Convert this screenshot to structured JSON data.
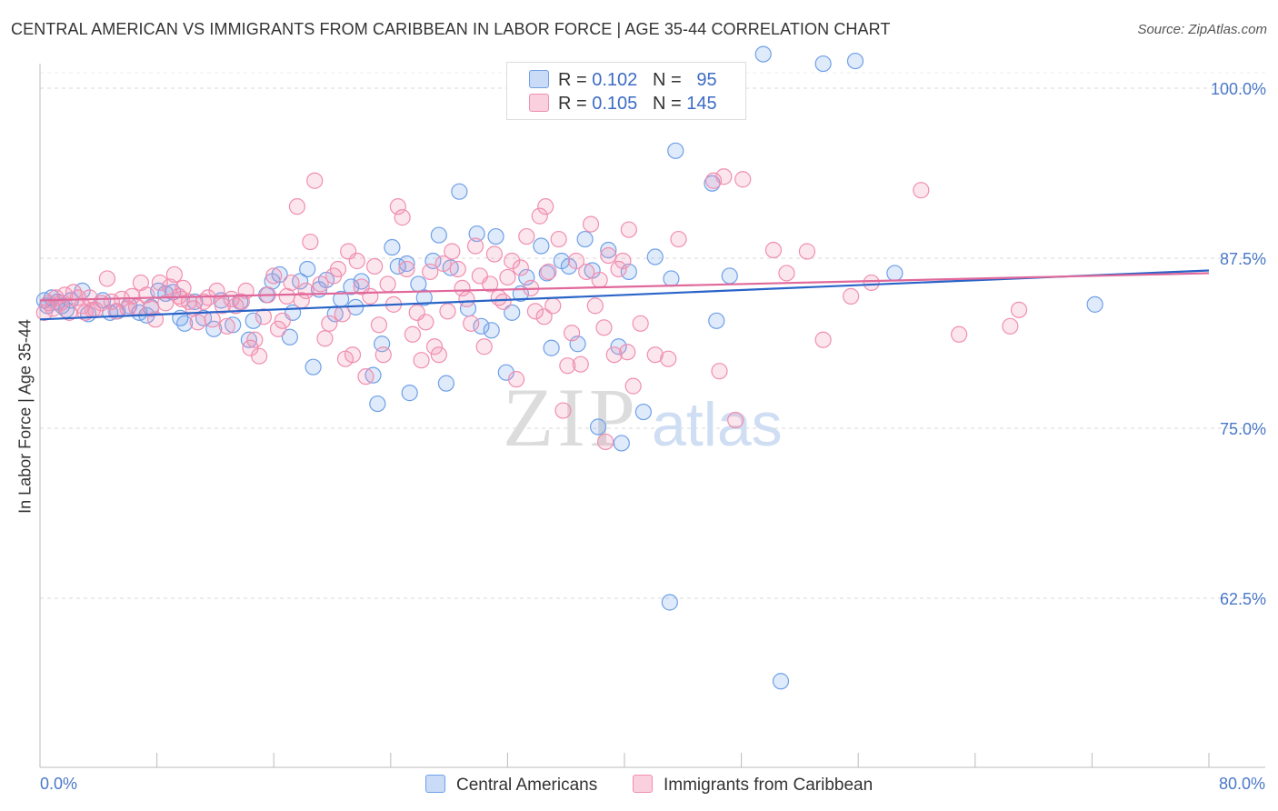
{
  "title": "CENTRAL AMERICAN VS IMMIGRANTS FROM CARIBBEAN IN LABOR FORCE | AGE 35-44 CORRELATION CHART",
  "source": "Source: ZipAtlas.com",
  "watermark": {
    "zip": "ZIP",
    "atlas": "atlas"
  },
  "legend": {
    "r_label": "R =",
    "n_label": "N =",
    "rows": [
      {
        "r": "0.102",
        "n": "95",
        "color": "#6fa0e8"
      },
      {
        "r": "0.105",
        "n": "145",
        "color": "#f08fb0"
      }
    ]
  },
  "chart_data": {
    "type": "scatter",
    "xlabel": "",
    "ylabel": "In Labor Force | Age 35-44",
    "xlim": [
      0,
      80
    ],
    "ylim": [
      50,
      100
    ],
    "x_tick_labels": [
      "0.0%",
      "80.0%"
    ],
    "y_ticks": [
      62.5,
      75.0,
      87.5,
      100.0
    ],
    "y_tick_labels": [
      "62.5%",
      "75.0%",
      "87.5%",
      "100.0%"
    ],
    "grid": "horizontal dashed",
    "series": [
      {
        "name": "Central Americans",
        "color": "#6fa0e8",
        "line_color": "#2a64c8",
        "trend": [
          [
            0,
            83.0
          ],
          [
            80,
            86.6
          ]
        ],
        "points": [
          [
            0.3,
            84.4
          ],
          [
            0.5,
            84.0
          ],
          [
            0.8,
            84.6
          ],
          [
            1.2,
            84.3
          ],
          [
            1.5,
            84.0
          ],
          [
            1.8,
            83.7
          ],
          [
            2.1,
            84.4
          ],
          [
            2.9,
            85.1
          ],
          [
            3.3,
            83.4
          ],
          [
            4.3,
            84.4
          ],
          [
            4.8,
            83.5
          ],
          [
            5.3,
            83.6
          ],
          [
            6.1,
            84.0
          ],
          [
            6.8,
            83.5
          ],
          [
            7.3,
            83.3
          ],
          [
            7.6,
            83.9
          ],
          [
            8.1,
            85.1
          ],
          [
            8.6,
            84.9
          ],
          [
            9.1,
            85.0
          ],
          [
            9.6,
            83.1
          ],
          [
            9.9,
            82.7
          ],
          [
            10.6,
            84.3
          ],
          [
            11.2,
            83.1
          ],
          [
            11.9,
            82.3
          ],
          [
            12.4,
            84.4
          ],
          [
            13.2,
            82.6
          ],
          [
            13.7,
            84.3
          ],
          [
            14.3,
            81.5
          ],
          [
            14.6,
            82.9
          ],
          [
            15.5,
            84.8
          ],
          [
            15.9,
            85.8
          ],
          [
            16.4,
            86.3
          ],
          [
            17.1,
            81.7
          ],
          [
            17.3,
            83.5
          ],
          [
            17.8,
            85.8
          ],
          [
            18.3,
            86.7
          ],
          [
            18.7,
            79.5
          ],
          [
            19.1,
            85.2
          ],
          [
            19.6,
            85.9
          ],
          [
            20.2,
            83.4
          ],
          [
            20.6,
            84.5
          ],
          [
            21.3,
            85.4
          ],
          [
            21.6,
            83.9
          ],
          [
            22.0,
            85.8
          ],
          [
            22.8,
            78.9
          ],
          [
            23.1,
            76.8
          ],
          [
            23.4,
            81.2
          ],
          [
            24.1,
            88.3
          ],
          [
            24.5,
            86.9
          ],
          [
            25.1,
            87.1
          ],
          [
            25.3,
            77.6
          ],
          [
            25.9,
            85.6
          ],
          [
            26.3,
            84.6
          ],
          [
            26.9,
            87.3
          ],
          [
            27.3,
            89.2
          ],
          [
            27.8,
            78.3
          ],
          [
            28.1,
            86.8
          ],
          [
            28.7,
            92.4
          ],
          [
            29.3,
            83.8
          ],
          [
            29.9,
            89.3
          ],
          [
            30.2,
            82.5
          ],
          [
            30.9,
            82.2
          ],
          [
            31.2,
            89.1
          ],
          [
            31.9,
            79.1
          ],
          [
            32.3,
            83.5
          ],
          [
            32.9,
            84.9
          ],
          [
            33.3,
            86.1
          ],
          [
            34.3,
            88.4
          ],
          [
            34.7,
            86.4
          ],
          [
            35.0,
            80.9
          ],
          [
            35.7,
            87.3
          ],
          [
            36.2,
            86.9
          ],
          [
            36.8,
            81.2
          ],
          [
            37.3,
            88.9
          ],
          [
            37.8,
            86.6
          ],
          [
            38.2,
            75.1
          ],
          [
            38.9,
            88.1
          ],
          [
            39.6,
            81.0
          ],
          [
            39.8,
            73.9
          ],
          [
            40.3,
            86.5
          ],
          [
            41.3,
            76.2
          ],
          [
            42.1,
            87.6
          ],
          [
            43.2,
            86.0
          ],
          [
            43.5,
            95.4
          ],
          [
            46.0,
            93.0
          ],
          [
            46.3,
            82.9
          ],
          [
            47.2,
            86.2
          ],
          [
            49.5,
            102.5
          ],
          [
            53.6,
            101.8
          ],
          [
            55.8,
            102.0
          ],
          [
            58.5,
            86.4
          ],
          [
            72.2,
            84.1
          ],
          [
            43.1,
            62.2
          ],
          [
            50.7,
            56.4
          ]
        ]
      },
      {
        "name": "Immigrants from Caribbean",
        "color": "#f08fb0",
        "line_color": "#e0689a",
        "trend": [
          [
            0,
            84.4
          ],
          [
            80,
            86.4
          ]
        ],
        "points": [
          [
            0.3,
            83.5
          ],
          [
            0.6,
            84.2
          ],
          [
            0.9,
            83.8
          ],
          [
            1.1,
            84.6
          ],
          [
            1.4,
            84.2
          ],
          [
            1.7,
            84.8
          ],
          [
            2.0,
            83.5
          ],
          [
            2.3,
            85.0
          ],
          [
            2.6,
            84.6
          ],
          [
            2.9,
            84.0
          ],
          [
            3.1,
            83.5
          ],
          [
            3.4,
            84.6
          ],
          [
            3.8,
            83.7
          ],
          [
            4.2,
            84.2
          ],
          [
            4.6,
            86.0
          ],
          [
            4.9,
            84.3
          ],
          [
            5.2,
            83.6
          ],
          [
            5.6,
            84.5
          ],
          [
            6.0,
            83.8
          ],
          [
            6.3,
            84.7
          ],
          [
            6.6,
            83.9
          ],
          [
            6.9,
            85.7
          ],
          [
            7.3,
            84.8
          ],
          [
            7.6,
            83.8
          ],
          [
            7.9,
            83.0
          ],
          [
            8.2,
            85.7
          ],
          [
            8.6,
            84.2
          ],
          [
            8.9,
            85.4
          ],
          [
            9.2,
            86.3
          ],
          [
            9.5,
            84.7
          ],
          [
            9.8,
            85.3
          ],
          [
            10.2,
            84.3
          ],
          [
            10.5,
            83.8
          ],
          [
            10.8,
            82.8
          ],
          [
            11.2,
            84.3
          ],
          [
            11.5,
            84.6
          ],
          [
            11.8,
            83.0
          ],
          [
            12.1,
            85.1
          ],
          [
            12.5,
            84.0
          ],
          [
            12.8,
            82.5
          ],
          [
            13.1,
            84.5
          ],
          [
            13.4,
            84.0
          ],
          [
            13.8,
            84.3
          ],
          [
            14.1,
            85.1
          ],
          [
            14.4,
            80.9
          ],
          [
            14.7,
            81.5
          ],
          [
            15.0,
            80.3
          ],
          [
            15.3,
            83.2
          ],
          [
            15.6,
            84.8
          ],
          [
            16.0,
            86.2
          ],
          [
            16.3,
            82.3
          ],
          [
            16.6,
            82.9
          ],
          [
            16.9,
            84.7
          ],
          [
            17.2,
            85.7
          ],
          [
            17.6,
            91.3
          ],
          [
            17.9,
            84.4
          ],
          [
            18.2,
            85.1
          ],
          [
            18.5,
            88.7
          ],
          [
            18.8,
            93.2
          ],
          [
            19.2,
            85.6
          ],
          [
            19.5,
            81.6
          ],
          [
            19.8,
            82.7
          ],
          [
            20.1,
            86.2
          ],
          [
            20.4,
            86.7
          ],
          [
            20.7,
            83.4
          ],
          [
            21.1,
            88.0
          ],
          [
            21.4,
            80.4
          ],
          [
            21.7,
            87.3
          ],
          [
            22.0,
            85.4
          ],
          [
            22.3,
            78.8
          ],
          [
            22.6,
            84.7
          ],
          [
            22.9,
            86.9
          ],
          [
            23.2,
            82.6
          ],
          [
            23.5,
            80.4
          ],
          [
            23.8,
            85.6
          ],
          [
            24.2,
            84.1
          ],
          [
            24.5,
            91.3
          ],
          [
            24.8,
            90.5
          ],
          [
            25.1,
            86.7
          ],
          [
            25.5,
            81.9
          ],
          [
            25.8,
            83.5
          ],
          [
            26.1,
            80.0
          ],
          [
            26.4,
            82.8
          ],
          [
            26.7,
            86.5
          ],
          [
            27.0,
            81.0
          ],
          [
            27.3,
            80.4
          ],
          [
            27.6,
            87.1
          ],
          [
            27.9,
            83.6
          ],
          [
            28.2,
            88.0
          ],
          [
            28.6,
            86.7
          ],
          [
            28.9,
            85.3
          ],
          [
            29.2,
            84.5
          ],
          [
            29.5,
            82.7
          ],
          [
            29.8,
            88.4
          ],
          [
            30.1,
            86.2
          ],
          [
            30.4,
            81.0
          ],
          [
            30.8,
            85.6
          ],
          [
            31.1,
            87.8
          ],
          [
            31.4,
            84.6
          ],
          [
            31.7,
            84.3
          ],
          [
            32.0,
            86.1
          ],
          [
            32.3,
            87.3
          ],
          [
            32.6,
            78.6
          ],
          [
            32.9,
            86.8
          ],
          [
            33.3,
            89.1
          ],
          [
            33.6,
            85.3
          ],
          [
            33.9,
            83.6
          ],
          [
            34.2,
            90.6
          ],
          [
            34.5,
            83.2
          ],
          [
            34.8,
            86.5
          ],
          [
            35.1,
            84.0
          ],
          [
            35.5,
            88.9
          ],
          [
            35.8,
            76.3
          ],
          [
            36.1,
            79.6
          ],
          [
            36.4,
            82.0
          ],
          [
            36.7,
            87.3
          ],
          [
            37.0,
            79.7
          ],
          [
            37.4,
            86.5
          ],
          [
            37.7,
            90.0
          ],
          [
            38.0,
            84.0
          ],
          [
            38.3,
            85.9
          ],
          [
            38.6,
            82.4
          ],
          [
            38.9,
            87.7
          ],
          [
            39.3,
            80.4
          ],
          [
            39.6,
            86.7
          ],
          [
            39.9,
            87.3
          ],
          [
            40.2,
            80.6
          ],
          [
            40.6,
            78.1
          ],
          [
            41.1,
            82.7
          ],
          [
            42.1,
            80.4
          ],
          [
            43.0,
            80.1
          ],
          [
            43.7,
            88.9
          ],
          [
            46.5,
            79.2
          ],
          [
            46.8,
            93.5
          ],
          [
            48.1,
            93.3
          ],
          [
            50.2,
            88.1
          ],
          [
            51.1,
            86.4
          ],
          [
            52.5,
            88.0
          ],
          [
            53.6,
            81.5
          ],
          [
            55.5,
            84.7
          ],
          [
            56.9,
            85.7
          ],
          [
            60.3,
            92.5
          ],
          [
            62.9,
            81.9
          ],
          [
            66.4,
            82.5
          ],
          [
            67.0,
            83.7
          ],
          [
            47.6,
            75.6
          ],
          [
            38.7,
            74.0
          ],
          [
            20.9,
            80.1
          ],
          [
            34.6,
            91.3
          ],
          [
            40.3,
            89.6
          ],
          [
            46.1,
            93.2
          ],
          [
            3.6,
            83.7
          ],
          [
            9.7,
            84.5
          ]
        ]
      }
    ]
  },
  "bottom_legend": {
    "items": [
      {
        "label": "Central Americans",
        "color": "#6fa0e8"
      },
      {
        "label": "Immigrants from Caribbean",
        "color": "#f08fb0"
      }
    ]
  }
}
